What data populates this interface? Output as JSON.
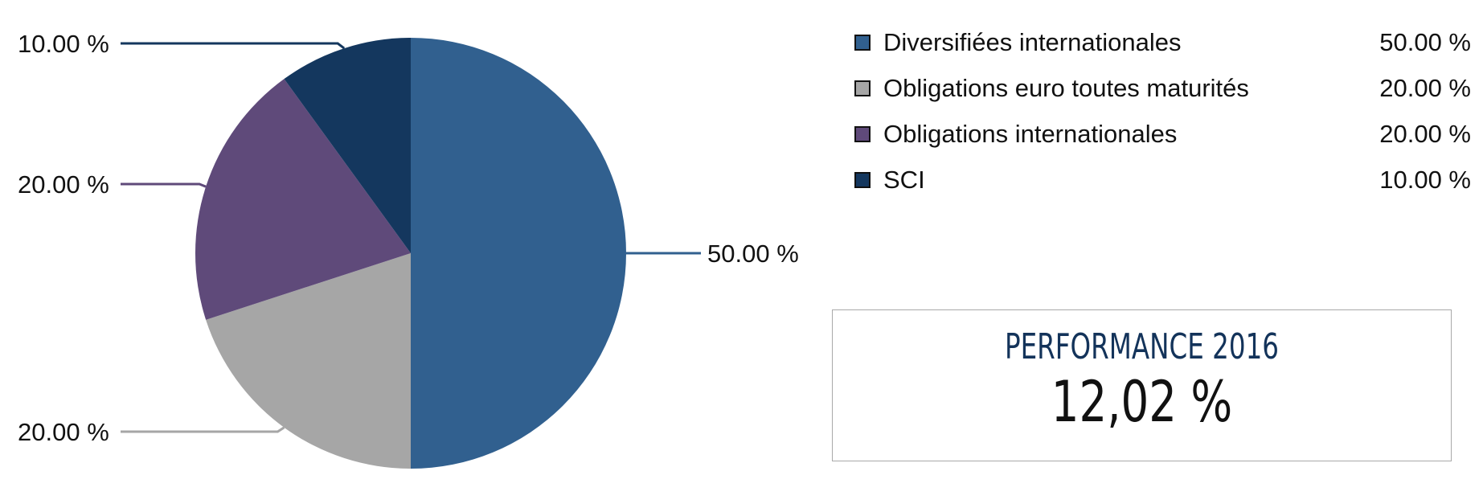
{
  "chart_data": {
    "type": "pie",
    "title": "",
    "legend_position": "right",
    "slices": [
      {
        "label": "Diversifiées internationales",
        "value": 50.0,
        "display": "50.00 %",
        "color": "#31608f"
      },
      {
        "label": "Obligations euro toutes maturités",
        "value": 20.0,
        "display": "20.00 %",
        "color": "#a6a6a6"
      },
      {
        "label": "Obligations internationales",
        "value": 20.0,
        "display": "20.00 %",
        "color": "#5f4a7a"
      },
      {
        "label": "SCI",
        "value": 10.0,
        "display": "10.00 %",
        "color": "#14375e"
      }
    ]
  },
  "performance": {
    "title": "PERFORMANCE 2016",
    "value": "12,02 %"
  }
}
